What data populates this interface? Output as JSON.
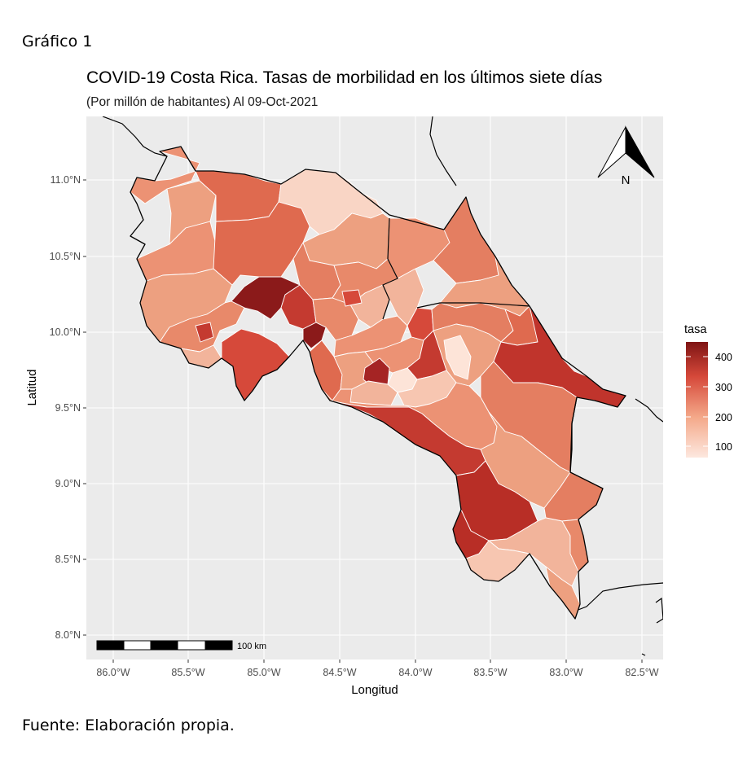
{
  "figure_label": "Gráfico 1",
  "source_note": "Fuente: Elaboración propia.",
  "map": {
    "title": "COVID-19 Costa Rica. Tasas de morbilidad en los últimos siete días",
    "subtitle": "(Por millón de habitantes) Al 09-Oct-2021",
    "x_axis_label": "Longitud",
    "y_axis_label": "Latitud",
    "x_ticks": [
      "86.0°W",
      "85.5°W",
      "85.0°W",
      "84.5°W",
      "84.0°W",
      "83.5°W",
      "83.0°W",
      "82.5°W"
    ],
    "y_ticks": [
      "11.0°N",
      "10.5°N",
      "10.0°N",
      "9.5°N",
      "9.0°N",
      "8.5°N",
      "8.0°N"
    ],
    "north_arrow_label": "N",
    "scale_bar_label": "100 km",
    "legend": {
      "title": "tasa",
      "ticks": [
        "400",
        "300",
        "200",
        "100"
      ],
      "color_low": "#fde8df",
      "color_high": "#7f1414"
    },
    "colors": {
      "panel_background": "#ebebeb",
      "grid": "#ffffff",
      "border": "#000000"
    }
  }
}
